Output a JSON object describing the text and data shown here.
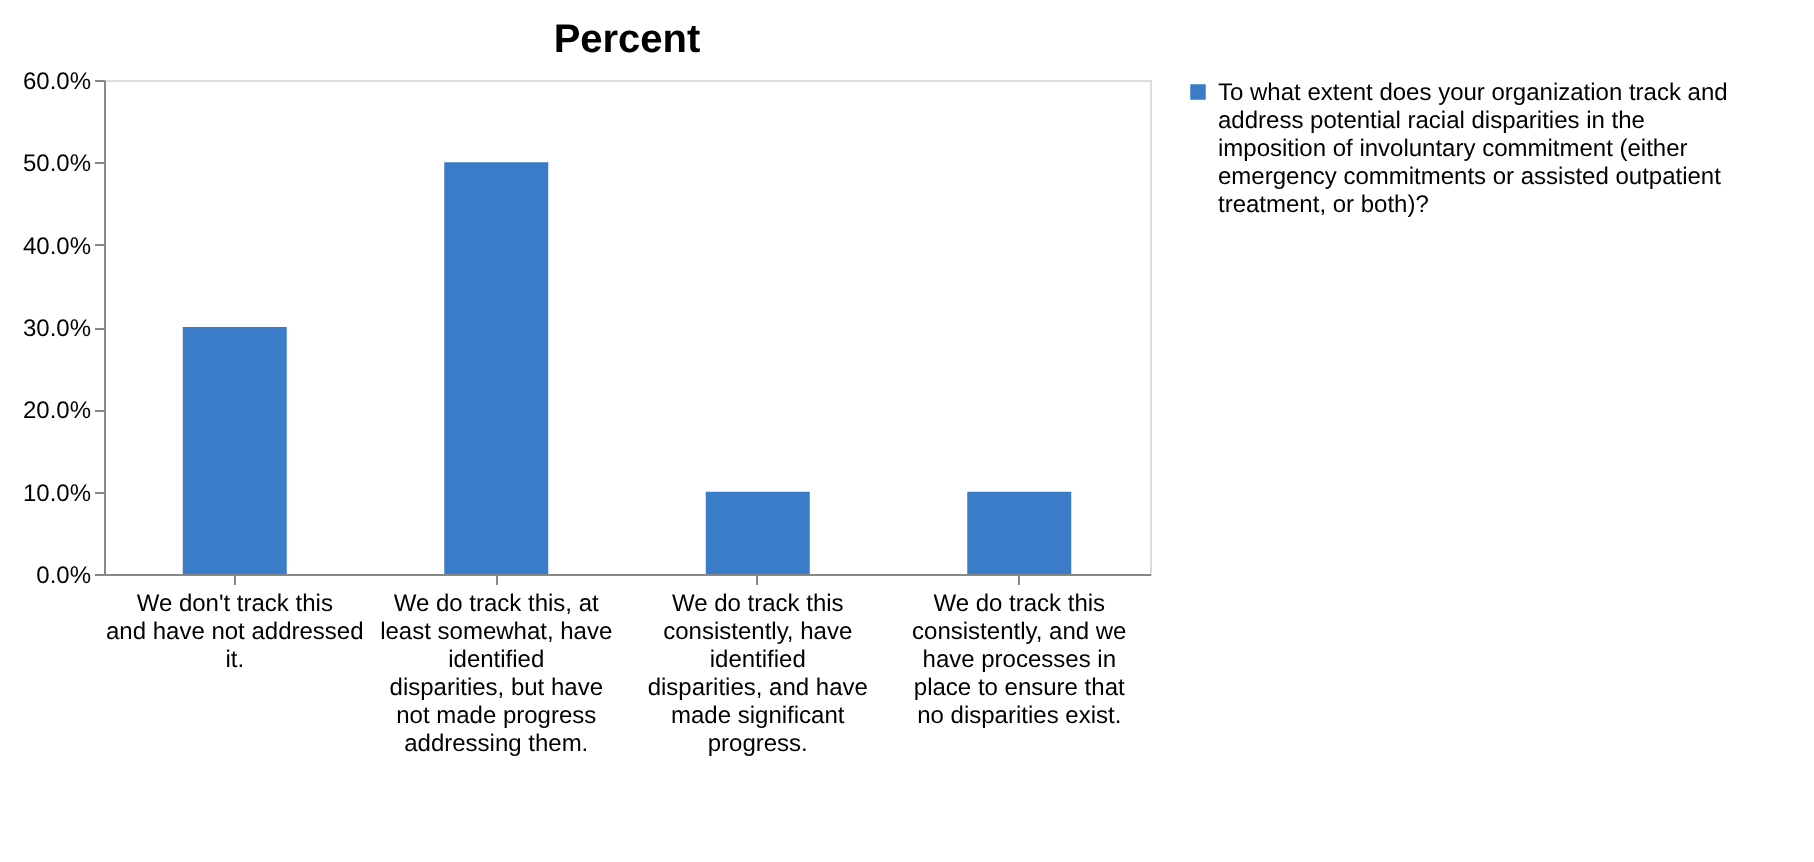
{
  "chart_data": {
    "type": "bar",
    "title": "Percent",
    "categories": [
      "We don't track this and have not addressed it.",
      "We do track this, at least somewhat, have identified disparities, but have not made progress addressing them.",
      "We do track this consistently, have identified disparities, and have made significant progress.",
      "We do track this consistently, and we have processes in place to ensure that no disparities exist."
    ],
    "series": [
      {
        "name": "To what extent does your organization track and address potential racial disparities in the imposition of involuntary commitment (either emergency commitments or assisted outpatient treatment, or both)?",
        "color": "#3a7cc8",
        "values": [
          30,
          50,
          10,
          10
        ]
      }
    ],
    "ylim": [
      0,
      60
    ],
    "yticks": [
      {
        "value": 0,
        "label": "0.0%"
      },
      {
        "value": 10,
        "label": "10.0%"
      },
      {
        "value": 20,
        "label": "20.0%"
      },
      {
        "value": 30,
        "label": "30.0%"
      },
      {
        "value": 40,
        "label": "40.0%"
      },
      {
        "value": 50,
        "label": "50.0%"
      },
      {
        "value": 60,
        "label": "60.0%"
      }
    ],
    "grid": false,
    "legend": "right"
  }
}
